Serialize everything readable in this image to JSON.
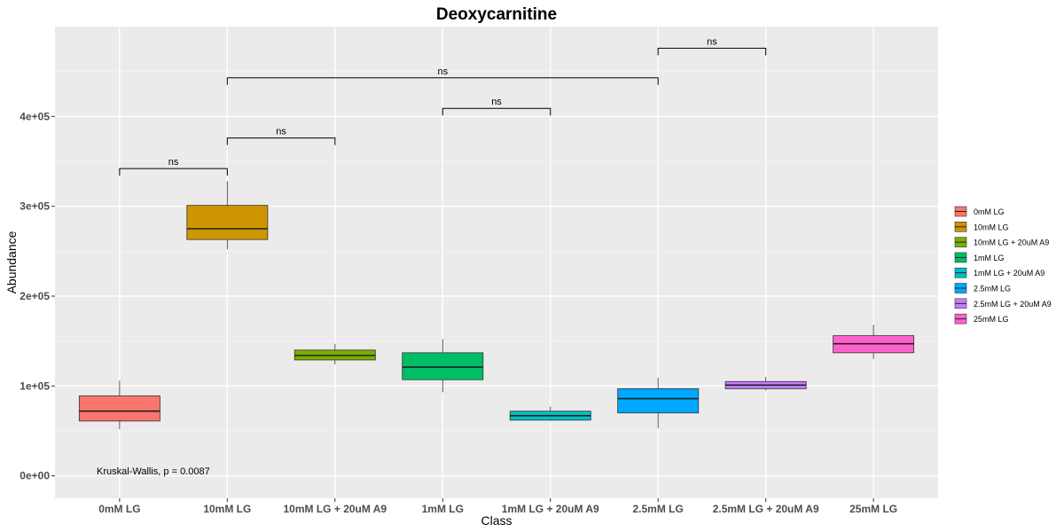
{
  "chart_data": {
    "type": "box",
    "title": "Deoxycarnitine",
    "xlabel": "Class",
    "ylabel": "Abundance",
    "ylim": [
      -25000,
      500000
    ],
    "yticks": [
      0,
      100000,
      200000,
      300000,
      400000
    ],
    "ytick_labels": [
      "0e+00",
      "1e+05",
      "2e+05",
      "3e+05",
      "4e+05"
    ],
    "grid": true,
    "legend_position": "right",
    "categories": [
      "0mM LG",
      "10mM LG",
      "10mM LG + 20uM A9",
      "1mM LG",
      "1mM LG + 20uM A9",
      "2.5mM LG",
      "2.5mM LG + 20uM A9",
      "25mM LG"
    ],
    "colors": [
      "#F8766D",
      "#CD9600",
      "#7CAE00",
      "#00BE67",
      "#00BFC4",
      "#00A9FF",
      "#C77CFF",
      "#FF61CC"
    ],
    "boxes": [
      {
        "class": "0mM LG",
        "min": 52000,
        "q1": 61000,
        "median": 72000,
        "q3": 89000,
        "max": 106000
      },
      {
        "class": "10mM LG",
        "min": 252000,
        "q1": 263000,
        "median": 275000,
        "q3": 301000,
        "max": 328000
      },
      {
        "class": "10mM LG + 20uM A9",
        "min": 124000,
        "q1": 129000,
        "median": 134000,
        "q3": 140000,
        "max": 147000
      },
      {
        "class": "1mM LG",
        "min": 93000,
        "q1": 107000,
        "median": 121000,
        "q3": 137000,
        "max": 152000
      },
      {
        "class": "1mM LG + 20uM A9",
        "min": 61000,
        "q1": 62000,
        "median": 67000,
        "q3": 72000,
        "max": 77000
      },
      {
        "class": "2.5mM LG",
        "min": 53000,
        "q1": 70000,
        "median": 86000,
        "q3": 97000,
        "max": 109000
      },
      {
        "class": "2.5mM LG + 20uM A9",
        "min": 95000,
        "q1": 97000,
        "median": 101000,
        "q3": 105000,
        "max": 110000
      },
      {
        "class": "25mM LG",
        "min": 130000,
        "q1": 137000,
        "median": 147000,
        "q3": 156000,
        "max": 168000
      }
    ],
    "comparisons": [
      {
        "from": "0mM LG",
        "to": "10mM LG",
        "y": 342000,
        "label": "ns"
      },
      {
        "from": "10mM LG",
        "to": "10mM LG + 20uM A9",
        "y": 376000,
        "label": "ns"
      },
      {
        "from": "1mM LG",
        "to": "1mM LG + 20uM A9",
        "y": 409000,
        "label": "ns"
      },
      {
        "from": "10mM LG",
        "to": "2.5mM LG",
        "y": 443000,
        "label": "ns"
      },
      {
        "from": "2.5mM LG",
        "to": "2.5mM LG + 20uM A9",
        "y": 476000,
        "label": "ns"
      }
    ],
    "annotation": {
      "text": "Kruskal-Wallis, p = 0.0087",
      "x": 1.0,
      "y": 2500
    }
  }
}
